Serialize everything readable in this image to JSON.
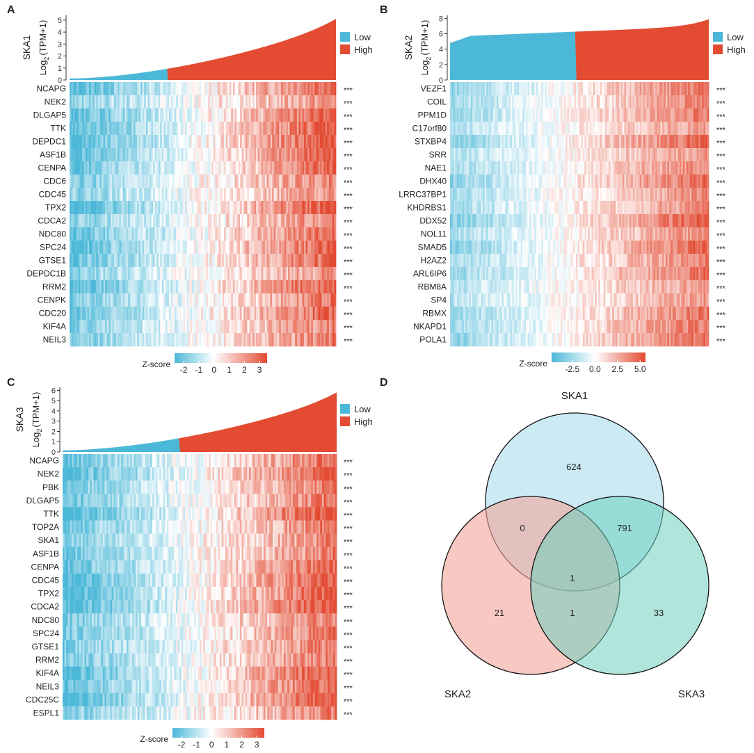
{
  "chart_data": [
    {
      "type": "heatmap",
      "panel": "A",
      "gene": "SKA1",
      "ylabel_gene": "SKA1",
      "ylabel_expr": "Log",
      "ylabel_sub": "2",
      "ylabel_unit": "(TPM+1)",
      "yticks": [
        "0",
        "1",
        "2",
        "3",
        "4",
        "5"
      ],
      "ylim": [
        0,
        5.4
      ],
      "expr_range": [
        0.12,
        5.1
      ],
      "low_fraction": 0.37,
      "legend": [
        "Low",
        "High"
      ],
      "rows": [
        "NCAPG",
        "NEK2",
        "DLGAP5",
        "TTK",
        "DEPDC1",
        "ASF1B",
        "CENPA",
        "CDC6",
        "CDC45",
        "TPX2",
        "CDCA2",
        "NDC80",
        "SPC24",
        "GTSE1",
        "DEPDC1B",
        "RRM2",
        "CENPK",
        "CDC20",
        "KIF4A",
        "NEIL3"
      ],
      "significance": "***",
      "colorbar_title": "Z-score",
      "colorbar_ticks": [
        "-2",
        "-1",
        "0",
        "1",
        "2",
        "3"
      ],
      "colorbar_range": [
        -2.6,
        3.5
      ]
    },
    {
      "type": "heatmap",
      "panel": "B",
      "gene": "SKA2",
      "ylabel_gene": "SKA2",
      "ylabel_expr": "Log",
      "ylabel_sub": "2",
      "ylabel_unit": "(TPM+1)",
      "yticks": [
        "0",
        "2",
        "4",
        "6",
        "8"
      ],
      "ylim": [
        0,
        8.4
      ],
      "expr_range": [
        4.8,
        7.9
      ],
      "low_fraction": 0.49,
      "legend": [
        "Low",
        "High"
      ],
      "rows": [
        "VEZF1",
        "COIL",
        "PPM1D",
        "C17orf80",
        "STXBP4",
        "SRR",
        "NAE1",
        "DHX40",
        "LRRC37BP1",
        "KHDRBS1",
        "DDX52",
        "NOL11",
        "SMAD5",
        "H2AZ2",
        "ARL6IP6",
        "RBM8A",
        "SP4",
        "RBMX",
        "NKAPD1",
        "POLA1"
      ],
      "significance": "***",
      "colorbar_title": "Z-score",
      "colorbar_ticks": [
        "-2.5",
        "0.0",
        "2.5",
        "5.0"
      ],
      "colorbar_range": [
        -4.8,
        5.6
      ]
    },
    {
      "type": "heatmap",
      "panel": "C",
      "gene": "SKA3",
      "ylabel_gene": "SKA3",
      "ylabel_expr": "Log",
      "ylabel_sub": "2",
      "ylabel_unit": "(TPM+1)",
      "yticks": [
        "0",
        "1",
        "2",
        "3",
        "4",
        "5",
        "6"
      ],
      "ylim": [
        0,
        6.3
      ],
      "expr_range": [
        0.15,
        5.8
      ],
      "low_fraction": 0.43,
      "legend": [
        "Low",
        "High"
      ],
      "rows": [
        "NCAPG",
        "NEK2",
        "PBK",
        "DLGAP5",
        "TTK",
        "TOP2A",
        "SKA1",
        "ASF1B",
        "CENPA",
        "CDC45",
        "TPX2",
        "CDCA2",
        "NDC80",
        "SPC24",
        "GTSE1",
        "RRM2",
        "KIF4A",
        "NEIL3",
        "CDC25C",
        "ESPL1"
      ],
      "significance": "***",
      "colorbar_title": "Z-score",
      "colorbar_ticks": [
        "-2",
        "-1",
        "0",
        "1",
        "2",
        "3"
      ],
      "colorbar_range": [
        -2.6,
        3.5
      ]
    },
    {
      "type": "venn",
      "panel": "D",
      "sets": [
        "SKA1",
        "SKA2",
        "SKA3"
      ],
      "colors": {
        "SKA1": "#a8dcec",
        "SKA2": "#f2a59a",
        "SKA3": "#6fcfbf"
      },
      "regions": {
        "SKA1_only": "624",
        "SKA2_only": "21",
        "SKA3_only": "33",
        "SKA1_SKA2": "0",
        "SKA1_SKA3": "791",
        "SKA2_SKA3": "1",
        "SKA1_SKA2_SKA3": "1"
      }
    }
  ],
  "colors": {
    "low": "#4cb8d8",
    "high": "#e34b33",
    "mid": "#ffffff"
  }
}
